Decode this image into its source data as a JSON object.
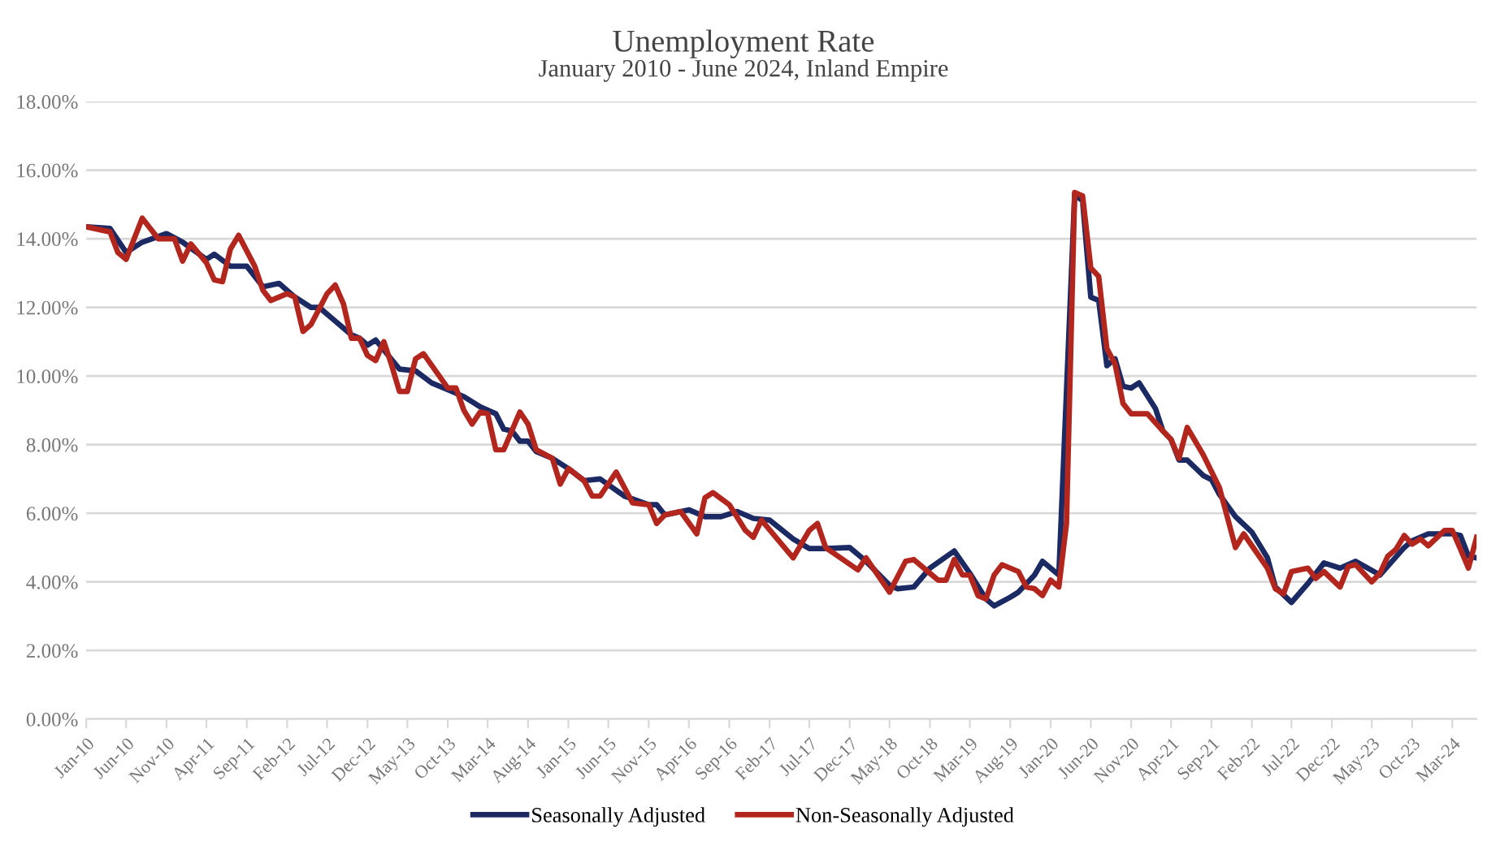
{
  "chart_data": {
    "type": "line",
    "title": "Unemployment Rate",
    "subtitle": "January 2010 - June 2024, Inland Empire",
    "xlim": [
      "2010-01",
      "2024-06"
    ],
    "ylim": [
      0,
      18
    ],
    "yticks": [
      {
        "value": 0,
        "label": "0.00%"
      },
      {
        "value": 2,
        "label": "2.00%"
      },
      {
        "value": 4,
        "label": "4.00%"
      },
      {
        "value": 6,
        "label": "6.00%"
      },
      {
        "value": 8,
        "label": "8.00%"
      },
      {
        "value": 10,
        "label": "10.00%"
      },
      {
        "value": 12,
        "label": "12.00%"
      },
      {
        "value": 14,
        "label": "14.00%"
      },
      {
        "value": 16,
        "label": "16.00%"
      },
      {
        "value": 18,
        "label": "18.00%"
      }
    ],
    "xticks": [
      {
        "value": "2010-01",
        "label": "Jan-10"
      },
      {
        "value": "2010-06",
        "label": "Jun-10"
      },
      {
        "value": "2010-11",
        "label": "Nov-10"
      },
      {
        "value": "2011-04",
        "label": "Apr-11"
      },
      {
        "value": "2011-09",
        "label": "Sep-11"
      },
      {
        "value": "2012-02",
        "label": "Feb-12"
      },
      {
        "value": "2012-07",
        "label": "Jul-12"
      },
      {
        "value": "2012-12",
        "label": "Dec-12"
      },
      {
        "value": "2013-05",
        "label": "May-13"
      },
      {
        "value": "2013-10",
        "label": "Oct-13"
      },
      {
        "value": "2014-03",
        "label": "Mar-14"
      },
      {
        "value": "2014-08",
        "label": "Aug-14"
      },
      {
        "value": "2015-01",
        "label": "Jan-15"
      },
      {
        "value": "2015-06",
        "label": "Jun-15"
      },
      {
        "value": "2015-11",
        "label": "Nov-15"
      },
      {
        "value": "2016-04",
        "label": "Apr-16"
      },
      {
        "value": "2016-09",
        "label": "Sep-16"
      },
      {
        "value": "2017-02",
        "label": "Feb-17"
      },
      {
        "value": "2017-07",
        "label": "Jul-17"
      },
      {
        "value": "2017-12",
        "label": "Dec-17"
      },
      {
        "value": "2018-05",
        "label": "May-18"
      },
      {
        "value": "2018-10",
        "label": "Oct-18"
      },
      {
        "value": "2019-03",
        "label": "Mar-19"
      },
      {
        "value": "2019-08",
        "label": "Aug-19"
      },
      {
        "value": "2020-01",
        "label": "Jan-20"
      },
      {
        "value": "2020-06",
        "label": "Jun-20"
      },
      {
        "value": "2020-11",
        "label": "Nov-20"
      },
      {
        "value": "2021-04",
        "label": "Apr-21"
      },
      {
        "value": "2021-09",
        "label": "Sep-21"
      },
      {
        "value": "2022-02",
        "label": "Feb-22"
      },
      {
        "value": "2022-07",
        "label": "Jul-22"
      },
      {
        "value": "2022-12",
        "label": "Dec-22"
      },
      {
        "value": "2023-05",
        "label": "May-23"
      },
      {
        "value": "2023-10",
        "label": "Oct-23"
      },
      {
        "value": "2024-03",
        "label": "Mar-24"
      }
    ],
    "grid": "y",
    "legend": "bottom",
    "marker": "none",
    "line_style": "solid",
    "series": [
      {
        "name": "Seasonally Adjusted",
        "color": "#1c2a64",
        "x": [
          "2010-01",
          "2010-04",
          "2010-06",
          "2010-08",
          "2010-11",
          "2011-01",
          "2011-04",
          "2011-05",
          "2011-07",
          "2011-09",
          "2011-11",
          "2012-01",
          "2012-03",
          "2012-05",
          "2012-06",
          "2012-08",
          "2012-10",
          "2012-11",
          "2012-12",
          "2013-01",
          "2013-04",
          "2013-06",
          "2013-08",
          "2013-10",
          "2013-12",
          "2014-02",
          "2014-04",
          "2014-05",
          "2014-06",
          "2014-07",
          "2014-08",
          "2014-09",
          "2014-11",
          "2015-01",
          "2015-03",
          "2015-05",
          "2015-08",
          "2015-11",
          "2015-12",
          "2016-01",
          "2016-04",
          "2016-06",
          "2016-08",
          "2016-10",
          "2016-12",
          "2017-02",
          "2017-05",
          "2017-07",
          "2017-09",
          "2017-12",
          "2018-02",
          "2018-05",
          "2018-06",
          "2018-08",
          "2018-10",
          "2019-01",
          "2019-03",
          "2019-05",
          "2019-06",
          "2019-08",
          "2019-09",
          "2019-11",
          "2019-12",
          "2020-02",
          "2020-04",
          "2020-05",
          "2020-06",
          "2020-07",
          "2020-08",
          "2020-09",
          "2020-10",
          "2020-11",
          "2020-12",
          "2021-02",
          "2021-03",
          "2021-04",
          "2021-05",
          "2021-06",
          "2021-08",
          "2021-09",
          "2021-10",
          "2021-12",
          "2022-02",
          "2022-04",
          "2022-05",
          "2022-07",
          "2022-09",
          "2022-11",
          "2023-01",
          "2023-03",
          "2023-06",
          "2023-09",
          "2023-10",
          "2023-12",
          "2024-03",
          "2024-04",
          "2024-05",
          "2024-06"
        ],
        "values": [
          14.35,
          14.3,
          13.6,
          13.9,
          14.15,
          13.9,
          13.4,
          13.55,
          13.2,
          13.2,
          12.6,
          12.7,
          12.3,
          12.0,
          12.0,
          11.6,
          11.2,
          11.1,
          10.9,
          11.05,
          10.2,
          10.15,
          9.8,
          9.6,
          9.4,
          9.1,
          8.9,
          8.45,
          8.4,
          8.1,
          8.1,
          7.8,
          7.6,
          7.3,
          6.95,
          7.0,
          6.5,
          6.25,
          6.25,
          5.95,
          6.1,
          5.9,
          5.9,
          6.05,
          5.85,
          5.8,
          5.25,
          4.97,
          4.97,
          5.0,
          4.6,
          3.9,
          3.8,
          3.85,
          4.4,
          4.9,
          4.25,
          3.5,
          3.3,
          3.55,
          3.7,
          4.2,
          4.6,
          4.2,
          15.3,
          15.1,
          12.3,
          12.2,
          10.3,
          10.5,
          9.7,
          9.65,
          9.8,
          9.05,
          8.4,
          8.15,
          7.55,
          7.55,
          7.1,
          6.98,
          6.55,
          5.9,
          5.45,
          4.7,
          3.85,
          3.4,
          3.95,
          4.55,
          4.4,
          4.6,
          4.2,
          5.0,
          5.2,
          5.4,
          5.4,
          5.35,
          4.75,
          4.7
        ]
      },
      {
        "name": "Non-Seasonally Adjusted",
        "color": "#b3261e",
        "x": [
          "2010-01",
          "2010-04",
          "2010-05",
          "2010-06",
          "2010-08",
          "2010-10",
          "2010-12",
          "2011-01",
          "2011-02",
          "2011-04",
          "2011-05",
          "2011-06",
          "2011-07",
          "2011-08",
          "2011-10",
          "2011-11",
          "2011-12",
          "2012-02",
          "2012-03",
          "2012-04",
          "2012-05",
          "2012-07",
          "2012-08",
          "2012-09",
          "2012-10",
          "2012-11",
          "2012-12",
          "2013-01",
          "2013-02",
          "2013-03",
          "2013-04",
          "2013-05",
          "2013-06",
          "2013-07",
          "2013-10",
          "2013-11",
          "2013-12",
          "2014-01",
          "2014-02",
          "2014-03",
          "2014-04",
          "2014-05",
          "2014-07",
          "2014-08",
          "2014-09",
          "2014-11",
          "2014-12",
          "2015-01",
          "2015-03",
          "2015-04",
          "2015-05",
          "2015-07",
          "2015-09",
          "2015-11",
          "2015-12",
          "2016-01",
          "2016-03",
          "2016-05",
          "2016-06",
          "2016-07",
          "2016-09",
          "2016-11",
          "2016-12",
          "2017-01",
          "2017-05",
          "2017-07",
          "2017-08",
          "2017-09",
          "2018-01",
          "2018-02",
          "2018-05",
          "2018-07",
          "2018-08",
          "2018-10",
          "2018-11",
          "2018-12",
          "2019-01",
          "2019-02",
          "2019-03",
          "2019-04",
          "2019-05",
          "2019-06",
          "2019-07",
          "2019-09",
          "2019-10",
          "2019-11",
          "2019-12",
          "2020-01",
          "2020-02",
          "2020-03",
          "2020-04",
          "2020-05",
          "2020-06",
          "2020-07",
          "2020-08",
          "2020-09",
          "2020-10",
          "2020-11",
          "2021-01",
          "2021-03",
          "2021-04",
          "2021-05",
          "2021-06",
          "2021-08",
          "2021-10",
          "2021-12",
          "2022-01",
          "2022-04",
          "2022-05",
          "2022-06",
          "2022-07",
          "2022-09",
          "2022-10",
          "2022-11",
          "2023-01",
          "2023-02",
          "2023-03",
          "2023-05",
          "2023-06",
          "2023-07",
          "2023-08",
          "2023-09",
          "2023-10",
          "2023-11",
          "2023-12",
          "2024-02",
          "2024-03",
          "2024-04",
          "2024-05",
          "2024-06"
        ],
        "values": [
          14.35,
          14.2,
          13.6,
          13.4,
          14.6,
          14.0,
          14.0,
          13.35,
          13.85,
          13.3,
          12.8,
          12.75,
          13.7,
          14.1,
          13.2,
          12.5,
          12.2,
          12.4,
          12.3,
          11.3,
          11.5,
          12.4,
          12.65,
          12.1,
          11.1,
          11.1,
          10.6,
          10.45,
          11.0,
          10.35,
          9.55,
          9.55,
          10.5,
          10.65,
          9.65,
          9.65,
          9.0,
          8.6,
          8.95,
          8.9,
          7.85,
          7.85,
          8.95,
          8.6,
          7.85,
          7.6,
          6.85,
          7.3,
          6.95,
          6.5,
          6.5,
          7.2,
          6.3,
          6.25,
          5.7,
          5.95,
          6.05,
          5.4,
          6.45,
          6.6,
          6.25,
          5.5,
          5.3,
          5.8,
          4.7,
          5.5,
          5.7,
          5.0,
          4.35,
          4.7,
          3.7,
          4.6,
          4.65,
          4.25,
          4.05,
          4.05,
          4.65,
          4.2,
          4.2,
          3.6,
          3.5,
          4.2,
          4.5,
          4.3,
          3.85,
          3.8,
          3.6,
          4.05,
          3.85,
          5.7,
          15.35,
          15.25,
          13.15,
          12.9,
          10.8,
          10.35,
          9.2,
          8.9,
          8.9,
          8.4,
          8.15,
          7.6,
          8.5,
          7.7,
          6.75,
          5.0,
          5.4,
          4.4,
          3.8,
          3.65,
          4.3,
          4.4,
          4.1,
          4.3,
          3.85,
          4.45,
          4.5,
          4.0,
          4.25,
          4.75,
          4.95,
          5.35,
          5.1,
          5.25,
          5.05,
          5.5,
          5.5,
          4.95,
          4.4,
          5.3
        ]
      }
    ]
  }
}
